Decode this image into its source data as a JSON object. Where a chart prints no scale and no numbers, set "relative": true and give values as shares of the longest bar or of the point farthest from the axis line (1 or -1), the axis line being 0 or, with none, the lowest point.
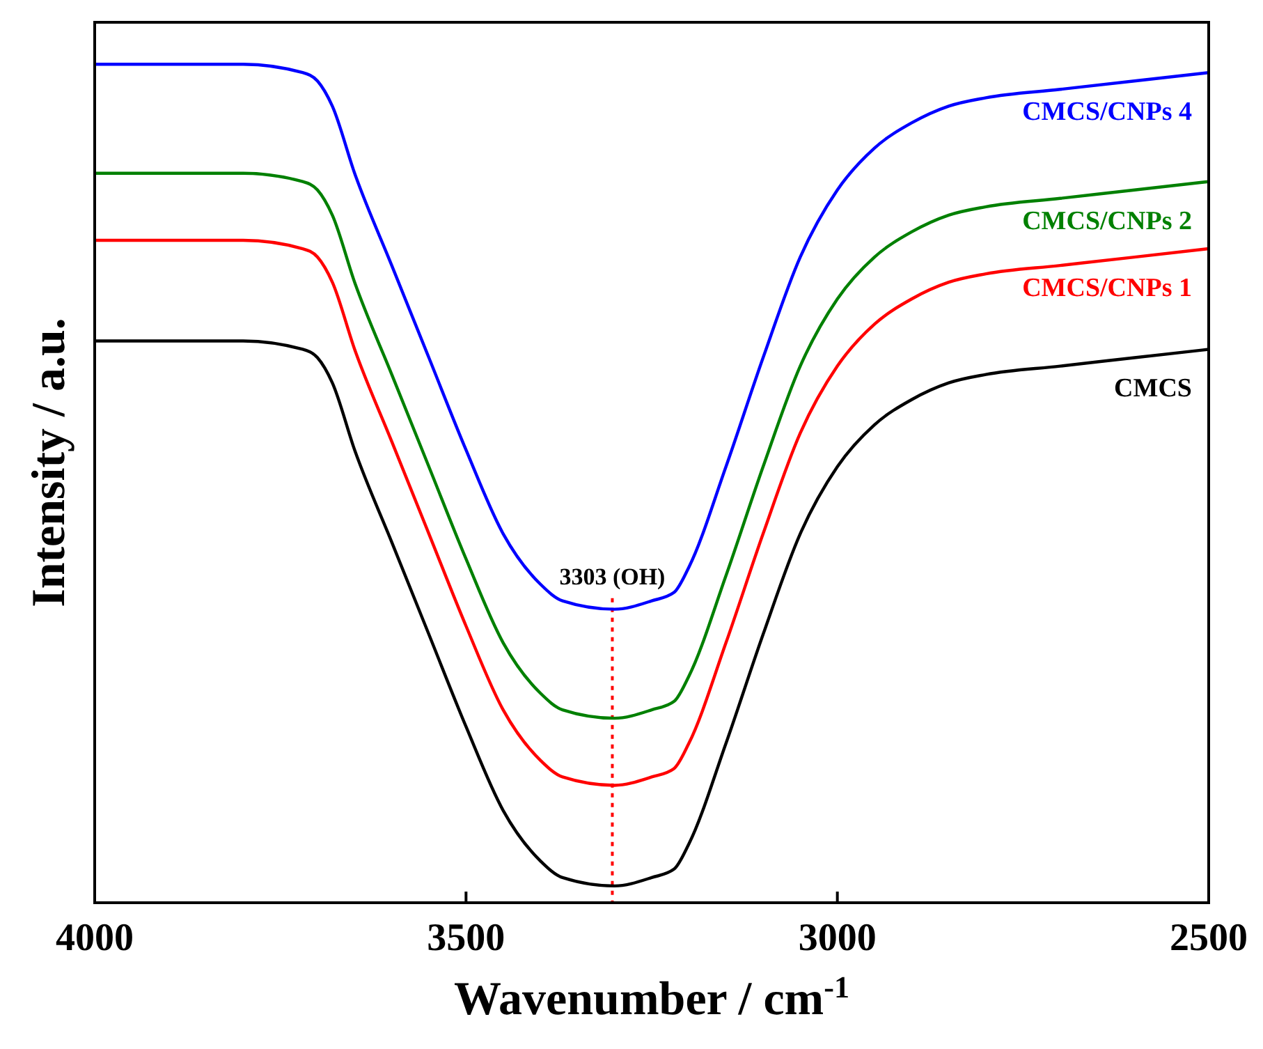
{
  "chart_data": {
    "type": "line",
    "relative": true,
    "xlabel": "Wavenumber / cm$^{-1}$",
    "ylabel": "Intensity / a.u.",
    "xlim": [
      4000,
      2500
    ],
    "xticks": [
      4000,
      3500,
      3000,
      2500
    ],
    "tick_labels": "x",
    "grid": false,
    "line_style": "solid",
    "x": [
      4000,
      3800,
      3720,
      3700,
      3680,
      3650,
      3600,
      3550,
      3500,
      3450,
      3400,
      3370,
      3300,
      3250,
      3220,
      3200,
      3150,
      3100,
      3050,
      3000,
      2950,
      2900,
      2850,
      2800,
      2700,
      2600,
      2500
    ],
    "series": [
      {
        "name": "CMCS",
        "color": "#000000",
        "values": [
          0.67,
          0.67,
          0.66,
          0.65,
          0.62,
          0.54,
          0.43,
          0.32,
          0.21,
          0.11,
          0.05,
          0.03,
          0.02,
          0.03,
          0.04,
          0.07,
          0.19,
          0.32,
          0.44,
          0.52,
          0.57,
          0.6,
          0.62,
          0.63,
          0.64,
          0.65,
          0.66
        ]
      },
      {
        "name": "CMCS/CNPs 1",
        "color": "#ff0000",
        "values": [
          0.79,
          0.79,
          0.78,
          0.77,
          0.74,
          0.66,
          0.55,
          0.44,
          0.33,
          0.23,
          0.17,
          0.15,
          0.14,
          0.15,
          0.16,
          0.19,
          0.31,
          0.44,
          0.56,
          0.64,
          0.69,
          0.72,
          0.74,
          0.75,
          0.76,
          0.77,
          0.78
        ]
      },
      {
        "name": "CMCS/CNPs 2",
        "color": "#008000",
        "values": [
          0.87,
          0.87,
          0.86,
          0.85,
          0.82,
          0.74,
          0.63,
          0.52,
          0.41,
          0.31,
          0.25,
          0.23,
          0.22,
          0.23,
          0.24,
          0.27,
          0.39,
          0.52,
          0.64,
          0.72,
          0.77,
          0.8,
          0.82,
          0.83,
          0.84,
          0.85,
          0.86
        ]
      },
      {
        "name": "CMCS/CNPs 4",
        "color": "#0000ff",
        "values": [
          1.0,
          1.0,
          0.99,
          0.98,
          0.95,
          0.87,
          0.76,
          0.65,
          0.54,
          0.44,
          0.38,
          0.36,
          0.35,
          0.36,
          0.37,
          0.4,
          0.52,
          0.65,
          0.77,
          0.85,
          0.9,
          0.93,
          0.95,
          0.96,
          0.97,
          0.98,
          0.99
        ]
      }
    ],
    "ref_lines": [
      {
        "axis": "x",
        "value": 3303,
        "label": "3303 (OH)",
        "color": "#ff0000",
        "line_style": "dotted"
      }
    ]
  }
}
